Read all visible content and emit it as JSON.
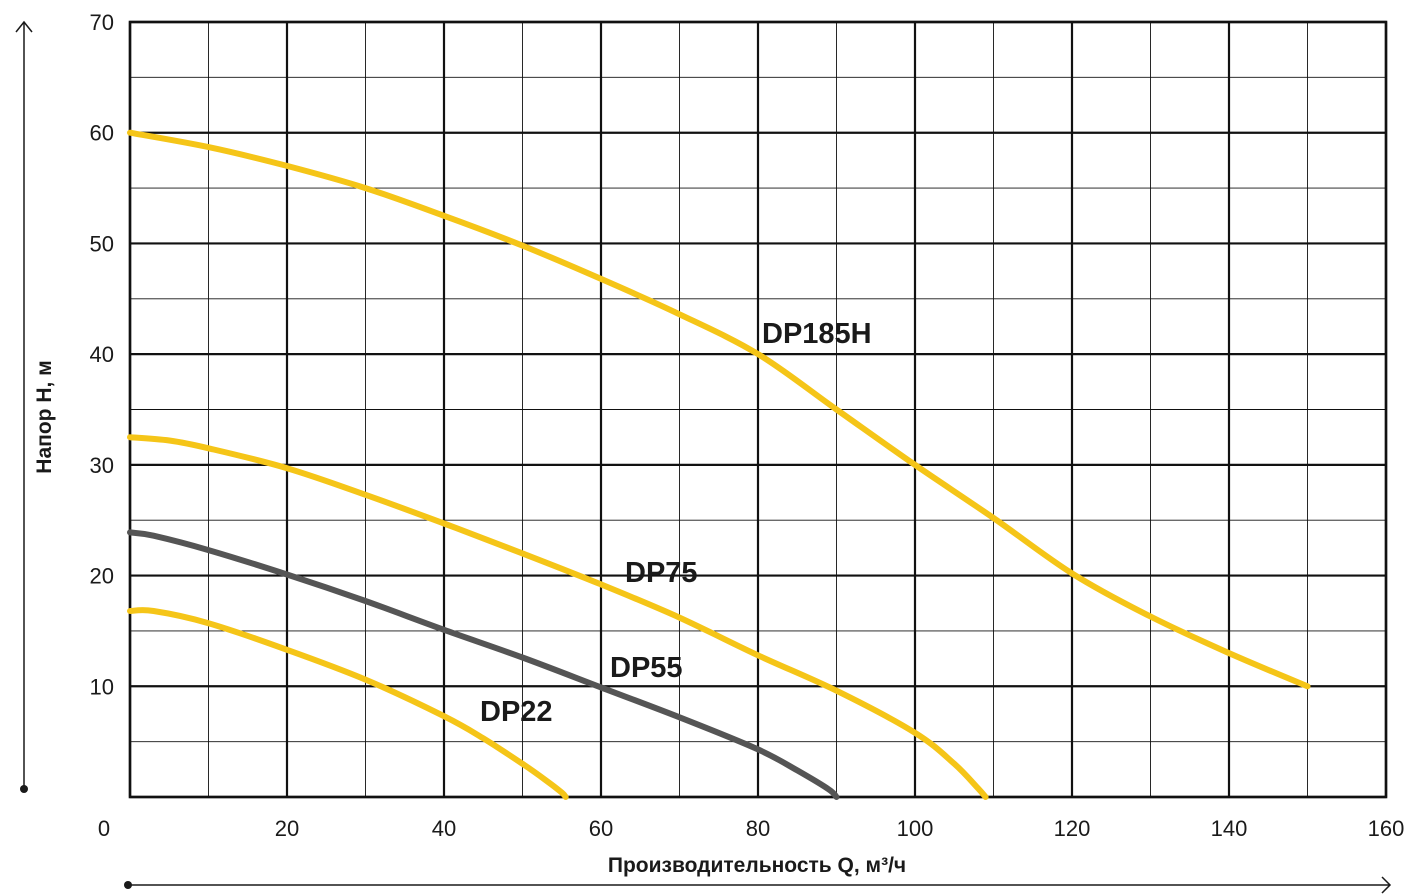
{
  "chart_data": {
    "type": "line",
    "xlabel": "Производительность Q, м³/ч",
    "ylabel": "Напор H, м",
    "xlim": [
      0,
      160
    ],
    "ylim": [
      0,
      70
    ],
    "x_ticks": [
      0,
      20,
      40,
      60,
      80,
      100,
      120,
      140,
      160
    ],
    "y_ticks": [
      10,
      20,
      30,
      40,
      50,
      60,
      70
    ],
    "grid": true,
    "series": [
      {
        "name": "DP185H",
        "color": "#F5C518",
        "x": [
          0,
          10,
          20,
          30,
          40,
          50,
          60,
          70,
          80,
          90,
          100,
          110,
          120,
          130,
          140,
          150
        ],
        "y": [
          60,
          58.7,
          57,
          55,
          52.5,
          49.8,
          46.8,
          43.6,
          40,
          35,
          30,
          25.2,
          20.2,
          16.3,
          13,
          10
        ]
      },
      {
        "name": "DP75",
        "color": "#F5C518",
        "x": [
          0,
          5,
          10,
          20,
          30,
          40,
          50,
          60,
          70,
          80,
          90,
          100,
          105,
          108,
          109
        ],
        "y": [
          32.5,
          32.2,
          31.5,
          29.7,
          27.3,
          24.7,
          22,
          19.2,
          16.2,
          12.8,
          9.6,
          5.8,
          3,
          0.8,
          0
        ]
      },
      {
        "name": "DP55",
        "color": "#555555",
        "x": [
          0,
          3,
          10,
          20,
          30,
          40,
          50,
          60,
          70,
          80,
          85,
          89,
          90
        ],
        "y": [
          23.9,
          23.6,
          22.3,
          20.1,
          17.7,
          15.1,
          12.6,
          9.9,
          7.2,
          4.3,
          2.4,
          0.7,
          0
        ]
      },
      {
        "name": "DP22",
        "color": "#F5C518",
        "x": [
          0,
          3,
          10,
          20,
          30,
          40,
          45,
          50,
          53,
          55,
          55.5
        ],
        "y": [
          16.8,
          16.8,
          15.7,
          13.3,
          10.6,
          7.3,
          5.3,
          3,
          1.5,
          0.4,
          0
        ]
      }
    ]
  }
}
